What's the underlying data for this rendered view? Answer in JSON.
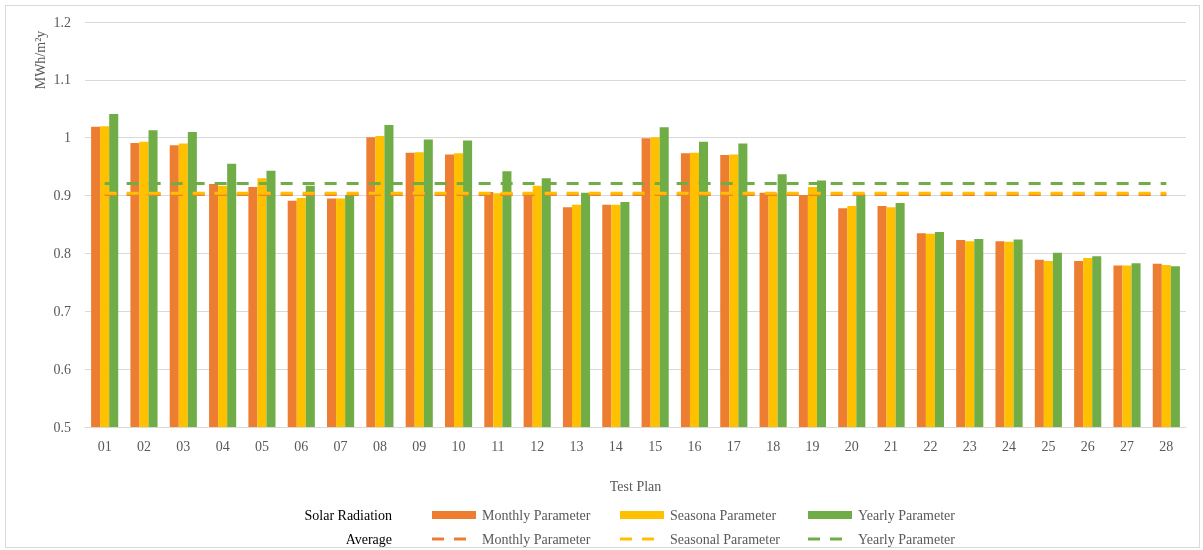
{
  "chart_data": {
    "type": "bar",
    "xlabel": "Test Plan",
    "ylabel": "MWh/m²y",
    "annotations": [
      "Solar Radiation",
      "Average"
    ],
    "categories": [
      "01",
      "02",
      "03",
      "04",
      "05",
      "06",
      "07",
      "08",
      "09",
      "10",
      "11",
      "12",
      "13",
      "14",
      "15",
      "16",
      "17",
      "18",
      "19",
      "20",
      "21",
      "22",
      "23",
      "24",
      "25",
      "26",
      "27",
      "28"
    ],
    "series": [
      {
        "name": "Monthly Parameter",
        "color": "#ed7d31",
        "values": [
          1.019,
          0.991,
          0.987,
          0.92,
          0.915,
          0.891,
          0.895,
          1.001,
          0.974,
          0.971,
          0.906,
          0.903,
          0.88,
          0.884,
          0.999,
          0.973,
          0.97,
          0.905,
          0.901,
          0.878,
          0.882,
          0.835,
          0.823,
          0.821,
          0.789,
          0.787,
          0.779,
          0.782
        ]
      },
      {
        "name": "Seasona Parameter",
        "color": "#ffc000",
        "values": [
          1.02,
          0.993,
          0.99,
          0.917,
          0.93,
          0.896,
          0.895,
          1.003,
          0.975,
          0.973,
          0.904,
          0.917,
          0.884,
          0.884,
          1.001,
          0.974,
          0.971,
          0.903,
          0.915,
          0.882,
          0.88,
          0.834,
          0.821,
          0.82,
          0.787,
          0.792,
          0.779,
          0.78
        ]
      },
      {
        "name": "Yearly Parameter",
        "color": "#70ad47",
        "values": [
          1.041,
          1.013,
          1.01,
          0.955,
          0.943,
          0.917,
          0.901,
          1.022,
          0.997,
          0.995,
          0.942,
          0.93,
          0.905,
          0.889,
          1.018,
          0.993,
          0.99,
          0.937,
          0.926,
          0.902,
          0.887,
          0.837,
          0.825,
          0.824,
          0.801,
          0.795,
          0.783,
          0.778
        ]
      },
      {
        "name": "Monthly Parameter",
        "type": "line",
        "color": "#ed7d31",
        "values": [
          0.902,
          0.902,
          0.902,
          0.902,
          0.902,
          0.902,
          0.902,
          0.902,
          0.902,
          0.902,
          0.902,
          0.902,
          0.902,
          0.902,
          0.902,
          0.902,
          0.902,
          0.902,
          0.902,
          0.902,
          0.902,
          0.902,
          0.902,
          0.902,
          0.902,
          0.902,
          0.902,
          0.902
        ]
      },
      {
        "name": "Seasonal Parameter",
        "type": "line",
        "color": "#ffc000",
        "values": [
          0.904,
          0.904,
          0.904,
          0.904,
          0.904,
          0.904,
          0.904,
          0.904,
          0.904,
          0.904,
          0.904,
          0.904,
          0.904,
          0.904,
          0.904,
          0.904,
          0.904,
          0.904,
          0.904,
          0.904,
          0.904,
          0.904,
          0.904,
          0.904,
          0.904,
          0.904,
          0.904,
          0.904
        ]
      },
      {
        "name": "Yearly Parameter",
        "type": "line",
        "color": "#70ad47",
        "values": [
          0.921,
          0.921,
          0.921,
          0.921,
          0.921,
          0.921,
          0.921,
          0.921,
          0.921,
          0.921,
          0.921,
          0.921,
          0.921,
          0.921,
          0.921,
          0.921,
          0.921,
          0.921,
          0.921,
          0.921,
          0.921,
          0.921,
          0.921,
          0.921,
          0.921,
          0.921,
          0.921,
          0.921
        ]
      }
    ],
    "ylim": [
      0.5,
      1.2
    ],
    "yticks": [
      0.5,
      0.6,
      0.7,
      0.8,
      0.9,
      1,
      1.1,
      1.2
    ],
    "grid": "y",
    "legend": "bottom",
    "marker": "none",
    "line_style": "dashed"
  }
}
